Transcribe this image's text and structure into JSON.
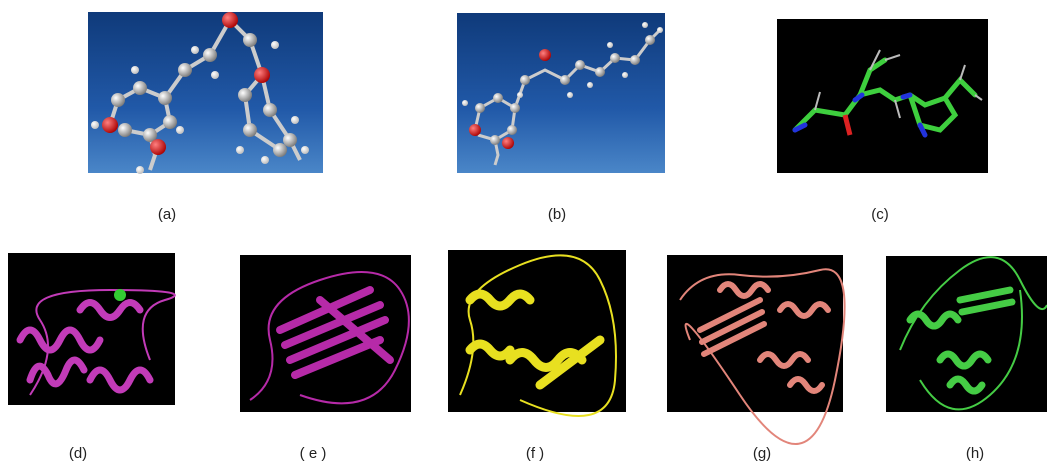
{
  "panels": [
    {
      "label": "(a)"
    },
    {
      "label": "(b)"
    },
    {
      "label": "(c)"
    },
    {
      "label": "(d)"
    },
    {
      "label": "( e )"
    },
    {
      "label": "(f )"
    },
    {
      "label": "(g)"
    },
    {
      "label": "(h)"
    }
  ]
}
